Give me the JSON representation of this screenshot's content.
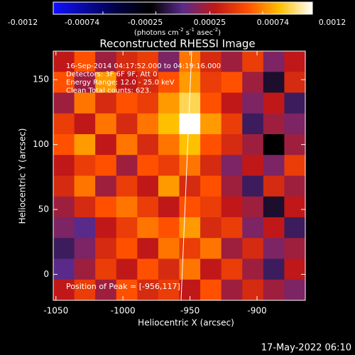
{
  "chart_data": {
    "type": "heatmap",
    "title": "Reconstructed RHESSI Image",
    "colorbar_ticks": [
      -0.0012,
      -0.00074,
      -0.00025,
      0.00025,
      0.00074,
      0.0012
    ],
    "colorbar_units": [
      "(photons cm",
      "-2",
      " s",
      "-1",
      " asec",
      "-2",
      ")"
    ],
    "clim": [
      -0.0012,
      0.0012
    ],
    "colorscale": [
      [
        -0.0012,
        "#1010ff"
      ],
      [
        -0.0006,
        "#000040"
      ],
      [
        -0.0003,
        "#000000"
      ],
      [
        0.0,
        "#5a2a8a"
      ],
      [
        0.0003,
        "#c01818"
      ],
      [
        0.0006,
        "#ff5000"
      ],
      [
        0.0009,
        "#ffc000"
      ],
      [
        0.0012,
        "#ffffff"
      ]
    ],
    "xlabel": "Heliocentric X (arcsec)",
    "ylabel": "Heliocentric Y (arcsec)",
    "xlim": [
      -1052,
      -864
    ],
    "ylim": [
      -20,
      172
    ],
    "xticks": [
      -1050,
      -1000,
      -950,
      -900
    ],
    "yticks": [
      0,
      50,
      100,
      150
    ],
    "annotations": [
      "16-Sep-2014 04:17:52.000 to 04:19:16.000",
      "Detectors: 3F 6F 9F, Att 0",
      "Energy Range: 12.0 - 25.0 keV",
      "Clean      Total counts: 623."
    ],
    "peak_label": "Position of Peak = [-956,117]",
    "timestamp": "17-May-2022 06:10",
    "z": [
      [
        0.0003,
        0.0006,
        0.0002,
        0.0004,
        0.0005,
        0.0001,
        0.0007,
        0.0004,
        0.0002,
        0.0005,
        0.0001,
        0.0003
      ],
      [
        0.0006,
        0.0002,
        0.0008,
        0.0003,
        0.0004,
        0.0006,
        0.0008,
        0.0005,
        0.0006,
        0.0002,
        -0.0002,
        0.0004
      ],
      [
        0.0002,
        0.0007,
        0.0004,
        0.0006,
        0.0005,
        0.0008,
        0.001,
        0.0006,
        0.0003,
        0.0001,
        0.0003,
        -0.0001
      ],
      [
        0.0005,
        0.0003,
        0.0007,
        0.0004,
        0.0007,
        0.0009,
        0.0012,
        0.0008,
        0.0005,
        -0.0001,
        0.0002,
        0.0001
      ],
      [
        0.0006,
        0.0008,
        0.0003,
        0.0007,
        0.0004,
        0.0007,
        0.0009,
        0.0006,
        0.0004,
        0.0002,
        -0.0003,
        0.0002
      ],
      [
        0.0003,
        0.0005,
        0.0006,
        0.0002,
        0.0006,
        0.0005,
        0.0007,
        0.0004,
        0.0001,
        0.0003,
        0.0001,
        0.0005
      ],
      [
        0.0004,
        0.0007,
        0.0002,
        0.0005,
        0.0003,
        0.0008,
        0.0004,
        0.0006,
        0.0002,
        -0.0001,
        0.0004,
        0.0002
      ],
      [
        0.0002,
        0.0004,
        0.0006,
        0.0007,
        0.0005,
        0.0003,
        0.0006,
        0.0005,
        0.0003,
        0.0002,
        -0.0002,
        0.0003
      ],
      [
        0.0001,
        0.0,
        0.0003,
        0.0005,
        0.0007,
        0.0006,
        0.0008,
        0.0004,
        0.0005,
        0.0001,
        0.0003,
        -0.0001
      ],
      [
        -0.0001,
        0.0001,
        0.0004,
        0.0006,
        0.0003,
        0.0007,
        0.0005,
        0.0007,
        0.0002,
        0.0004,
        0.0001,
        0.0002
      ],
      [
        0.0,
        0.0002,
        0.0005,
        0.0003,
        0.0006,
        0.0004,
        0.0007,
        0.0003,
        0.0005,
        0.0002,
        -0.0001,
        0.0003
      ],
      [
        0.0003,
        0.0005,
        0.0002,
        0.0006,
        0.0004,
        0.0005,
        0.0003,
        0.0006,
        0.0002,
        0.0004,
        0.0002,
        0.0001
      ]
    ]
  }
}
